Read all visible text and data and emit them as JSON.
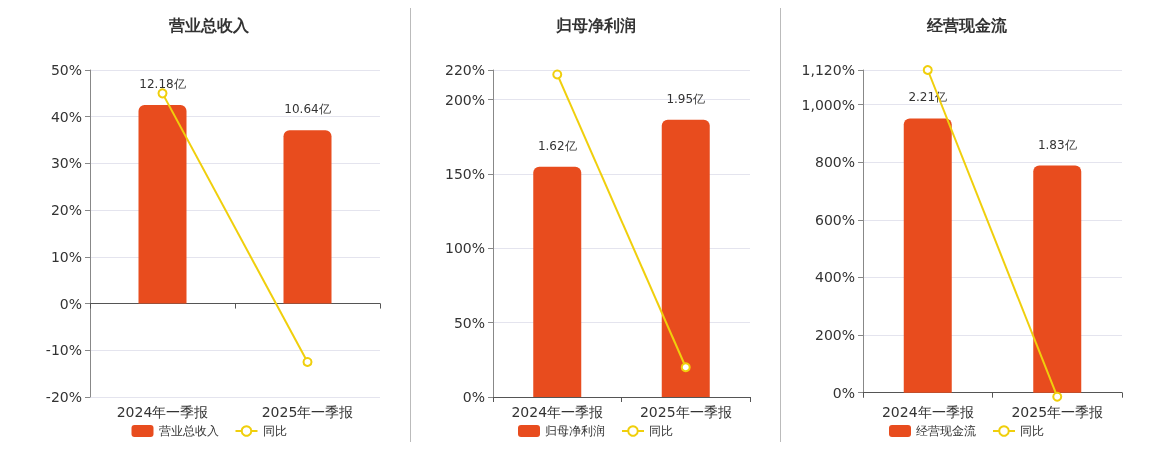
{
  "chart_data": [
    {
      "type": "bar",
      "title": "营业总收入",
      "categories": [
        "2024年一季报",
        "2025年一季报"
      ],
      "series": [
        {
          "name": "营业总收入",
          "axis": "y2",
          "color": "#e84c1e",
          "values": [
            12.18,
            10.64
          ],
          "value_labels": [
            "12.18亿",
            "10.64亿"
          ]
        },
        {
          "name": "同比",
          "type": "line",
          "color": "#f0cf0c",
          "values": [
            45,
            -12.5
          ]
        }
      ],
      "ylim": [
        -20,
        50
      ],
      "yticks": [
        {
          "value": -20,
          "label": "-20%"
        },
        {
          "value": -10,
          "label": "-10%"
        },
        {
          "value": 0,
          "label": "0%"
        },
        {
          "value": 10,
          "label": "10%"
        },
        {
          "value": 20,
          "label": "20%"
        },
        {
          "value": 30,
          "label": "30%"
        },
        {
          "value": 40,
          "label": "40%"
        },
        {
          "value": 50,
          "label": "50%"
        }
      ],
      "y2lim": [
        -5.73,
        14.33
      ],
      "grid": "y",
      "legend": "bottom",
      "marker": "circle"
    },
    {
      "type": "bar",
      "title": "归母净利润",
      "categories": [
        "2024年一季报",
        "2025年一季报"
      ],
      "series": [
        {
          "name": "归母净利润",
          "axis": "y2",
          "color": "#e84c1e",
          "values": [
            1.62,
            1.95
          ],
          "value_labels": [
            "1.62亿",
            "1.95亿"
          ]
        },
        {
          "name": "同比",
          "type": "line",
          "color": "#f0cf0c",
          "values": [
            217,
            20
          ]
        }
      ],
      "ylim": [
        0,
        220
      ],
      "yticks": [
        {
          "value": 0,
          "label": "0%"
        },
        {
          "value": 50,
          "label": "50%"
        },
        {
          "value": 100,
          "label": "100%"
        },
        {
          "value": 150,
          "label": "150%"
        },
        {
          "value": 200,
          "label": "200%"
        },
        {
          "value": 220,
          "label": "220%"
        }
      ],
      "y2lim": [
        0,
        2.3
      ],
      "grid": "y",
      "legend": "bottom",
      "marker": "circle"
    },
    {
      "type": "bar",
      "title": "经营现金流",
      "categories": [
        "2024年一季报",
        "2025年一季报"
      ],
      "series": [
        {
          "name": "经营现金流",
          "axis": "y2",
          "color": "#e84c1e",
          "values": [
            2.21,
            1.83
          ],
          "value_labels": [
            "2.21亿",
            "1.83亿"
          ]
        },
        {
          "name": "同比",
          "type": "line",
          "color": "#f0cf0c",
          "values": [
            1120,
            -14
          ]
        }
      ],
      "ylim": [
        -15,
        1120
      ],
      "yticks": [
        {
          "value": 0,
          "label": "0%"
        },
        {
          "value": 200,
          "label": "200%"
        },
        {
          "value": 400,
          "label": "400%"
        },
        {
          "value": 600,
          "label": "600%"
        },
        {
          "value": 800,
          "label": "800%"
        },
        {
          "value": 1000,
          "label": "1,000%"
        },
        {
          "value": 1120,
          "label": "1,120%"
        }
      ],
      "y2lim": [
        -0.035,
        2.6
      ],
      "grid": "y",
      "legend": "bottom",
      "marker": "circle"
    }
  ]
}
